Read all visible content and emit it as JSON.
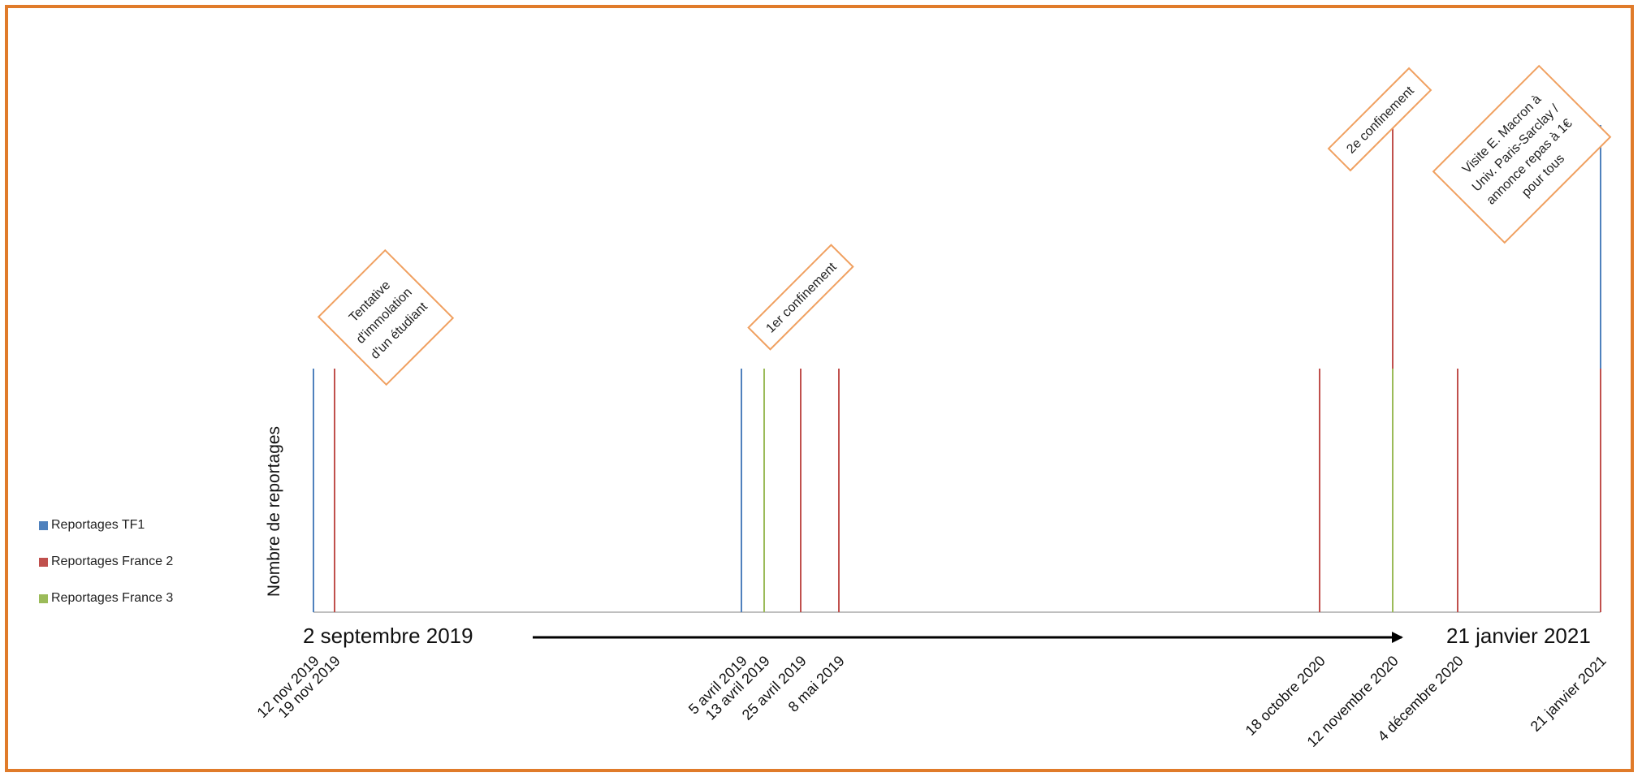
{
  "chart_data": {
    "type": "bar",
    "ylabel": "Nombre de reportages",
    "start_label": "2 septembre 2019",
    "end_label": "21 janvier 2021",
    "legend": [
      {
        "name": "Reportages TF1",
        "color": "#4f81bd"
      },
      {
        "name": "Reportages France 2",
        "color": "#c0504d"
      },
      {
        "name": "Reportages France 3",
        "color": "#9bbb59"
      }
    ],
    "events": [
      {
        "date": "12 nov 2019",
        "series": [
          "Reportages TF1"
        ],
        "counts": [
          1
        ]
      },
      {
        "date": "19 nov 2019",
        "series": [
          "Reportages France 2"
        ],
        "counts": [
          1
        ]
      },
      {
        "date": "5 avril 2019",
        "series": [
          "Reportages TF1"
        ],
        "counts": [
          1
        ]
      },
      {
        "date": "13 avril 2019",
        "series": [
          "Reportages France 3"
        ],
        "counts": [
          1
        ]
      },
      {
        "date": "25 avril 2019",
        "series": [
          "Reportages France 2"
        ],
        "counts": [
          1
        ]
      },
      {
        "date": "8 mai 2019",
        "series": [
          "Reportages France 2"
        ],
        "counts": [
          1
        ]
      },
      {
        "date": "18 octobre 2020",
        "series": [
          "Reportages France 2"
        ],
        "counts": [
          1
        ]
      },
      {
        "date": "12 novembre 2020",
        "series": [
          "Reportages France 3",
          "Reportages France 2"
        ],
        "counts": [
          1,
          1
        ]
      },
      {
        "date": "4 décembre 2020",
        "series": [
          "Reportages France 2"
        ],
        "counts": [
          1
        ]
      },
      {
        "date": "21 janvier 2021",
        "series": [
          "Reportages France 2",
          "Reportages TF1"
        ],
        "counts": [
          1,
          1
        ]
      }
    ],
    "annotations": [
      {
        "lines": [
          "Tentative",
          "d'immolation",
          "d'un étudiant"
        ]
      },
      {
        "lines": [
          "1er confinement"
        ]
      },
      {
        "lines": [
          "2e confinement"
        ]
      },
      {
        "lines": [
          "Visite E. Macron à",
          "Univ. Paris-Sarclay /",
          "annonce repas à 1€",
          "pour tous"
        ]
      }
    ]
  }
}
